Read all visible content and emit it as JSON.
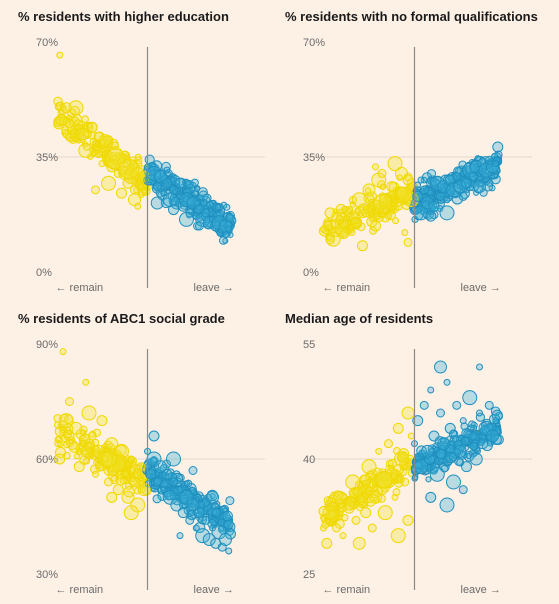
{
  "colors": {
    "background": "#fdf1e6",
    "remain": "#f2e22e",
    "remain_stroke": "#f0d800",
    "leave": "#3ab0d8",
    "leave_stroke": "#1f8fbf",
    "divider": "#8a8a8a",
    "gridline": "#e4d8cc"
  },
  "x_axis": {
    "remain_label": "← remain",
    "leave_label": "leave →"
  },
  "chart_data": [
    {
      "type": "scatter",
      "title": "% residents with higher education",
      "x_labels": [
        "← remain",
        "leave →"
      ],
      "ylim": [
        0,
        70
      ],
      "y_ticks": [
        "70%",
        "35%",
        "0%"
      ],
      "x_range_leave_share": [
        20,
        80
      ],
      "remain_trend": {
        "x": [
          22,
          50
        ],
        "y": [
          48,
          27
        ]
      },
      "leave_trend": {
        "x": [
          50,
          76
        ],
        "y": [
          31,
          13
        ]
      },
      "series": [
        {
          "group": "remain",
          "points": [
            [
              23,
              66
            ],
            [
              25,
              50
            ],
            [
              28,
              50
            ],
            [
              24,
              46
            ],
            [
              30,
              42
            ],
            [
              27,
              40
            ],
            [
              33,
              44
            ],
            [
              31,
              37
            ],
            [
              35,
              36
            ],
            [
              37,
              40
            ],
            [
              36,
              33
            ],
            [
              39,
              32
            ],
            [
              40,
              36
            ],
            [
              41,
              30
            ],
            [
              43,
              30
            ],
            [
              42,
              34
            ],
            [
              44,
              27
            ],
            [
              45,
              29
            ],
            [
              46,
              25
            ],
            [
              47,
              30
            ],
            [
              48,
              26
            ],
            [
              49,
              29
            ],
            [
              38,
              27
            ],
            [
              34,
              25
            ],
            [
              46,
              22
            ],
            [
              47,
              20
            ],
            [
              42,
              24
            ]
          ]
        },
        {
          "group": "leave",
          "points": [
            [
              50,
              32
            ],
            [
              51,
              28
            ],
            [
              52,
              30
            ],
            [
              53,
              26
            ],
            [
              54,
              29
            ],
            [
              55,
              24
            ],
            [
              56,
              27
            ],
            [
              57,
              22
            ],
            [
              58,
              25
            ],
            [
              59,
              21
            ],
            [
              60,
              23
            ],
            [
              61,
              20
            ],
            [
              62,
              22
            ],
            [
              63,
              18
            ],
            [
              64,
              21
            ],
            [
              65,
              17
            ],
            [
              66,
              19
            ],
            [
              67,
              16
            ],
            [
              68,
              18
            ],
            [
              69,
              15
            ],
            [
              70,
              16
            ],
            [
              71,
              14
            ],
            [
              72,
              15
            ],
            [
              73,
              13
            ],
            [
              74,
              14
            ],
            [
              75,
              13
            ],
            [
              58,
              19
            ],
            [
              62,
              16
            ],
            [
              66,
              14
            ],
            [
              53,
              21
            ],
            [
              56,
              31
            ],
            [
              60,
              27
            ]
          ]
        }
      ]
    },
    {
      "type": "scatter",
      "title": "% residents with no formal qualifications",
      "x_labels": [
        "← remain",
        "leave →"
      ],
      "ylim": [
        0,
        70
      ],
      "y_ticks": [
        "70%",
        "35%",
        "0%"
      ],
      "x_range_leave_share": [
        20,
        80
      ],
      "remain_trend": {
        "x": [
          22,
          50
        ],
        "y": [
          13,
          25
        ]
      },
      "leave_trend": {
        "x": [
          50,
          76
        ],
        "y": [
          21,
          32
        ]
      },
      "series": [
        {
          "group": "remain",
          "points": [
            [
              22,
              13
            ],
            [
              24,
              18
            ],
            [
              25,
              10
            ],
            [
              27,
              16
            ],
            [
              28,
              12
            ],
            [
              30,
              19
            ],
            [
              32,
              15
            ],
            [
              33,
              22
            ],
            [
              35,
              18
            ],
            [
              36,
              25
            ],
            [
              37,
              20
            ],
            [
              38,
              14
            ],
            [
              39,
              28
            ],
            [
              40,
              30
            ],
            [
              41,
              22
            ],
            [
              42,
              17
            ],
            [
              43,
              26
            ],
            [
              44,
              33
            ],
            [
              45,
              20
            ],
            [
              46,
              24
            ],
            [
              47,
              12
            ],
            [
              48,
              28
            ],
            [
              49,
              22
            ],
            [
              48,
              9
            ],
            [
              46,
              30
            ],
            [
              38,
              32
            ],
            [
              34,
              8
            ]
          ]
        },
        {
          "group": "leave",
          "points": [
            [
              50,
              19
            ],
            [
              51,
              23
            ],
            [
              52,
              18
            ],
            [
              53,
              25
            ],
            [
              54,
              21
            ],
            [
              55,
              24
            ],
            [
              56,
              20
            ],
            [
              57,
              27
            ],
            [
              58,
              23
            ],
            [
              59,
              26
            ],
            [
              60,
              22
            ],
            [
              61,
              28
            ],
            [
              62,
              25
            ],
            [
              63,
              29
            ],
            [
              64,
              26
            ],
            [
              65,
              30
            ],
            [
              66,
              27
            ],
            [
              67,
              31
            ],
            [
              68,
              29
            ],
            [
              69,
              32
            ],
            [
              70,
              30
            ],
            [
              71,
              33
            ],
            [
              72,
              31
            ],
            [
              73,
              34
            ],
            [
              74,
              32
            ],
            [
              75,
              33
            ],
            [
              55,
              17
            ],
            [
              60,
              18
            ],
            [
              65,
              23
            ],
            [
              70,
              26
            ],
            [
              52,
              28
            ]
          ]
        }
      ]
    },
    {
      "type": "scatter",
      "title": "% residents of ABC1 social grade",
      "x_labels": [
        "← remain",
        "leave →"
      ],
      "ylim": [
        30,
        90
      ],
      "y_ticks": [
        "90%",
        "60%",
        "30%"
      ],
      "x_range_leave_share": [
        20,
        80
      ],
      "remain_trend": {
        "x": [
          22,
          50
        ],
        "y": [
          68,
          54
        ]
      },
      "leave_trend": {
        "x": [
          50,
          76
        ],
        "y": [
          57,
          43
        ]
      },
      "series": [
        {
          "group": "remain",
          "points": [
            [
              24,
              88
            ],
            [
              23,
              60
            ],
            [
              25,
              70
            ],
            [
              26,
              75
            ],
            [
              28,
              68
            ],
            [
              30,
              64
            ],
            [
              29,
              58
            ],
            [
              32,
              72
            ],
            [
              33,
              66
            ],
            [
              35,
              62
            ],
            [
              34,
              56
            ],
            [
              36,
              70
            ],
            [
              37,
              60
            ],
            [
              38,
              54
            ],
            [
              39,
              64
            ],
            [
              40,
              58
            ],
            [
              41,
              52
            ],
            [
              42,
              62
            ],
            [
              43,
              56
            ],
            [
              44,
              50
            ],
            [
              45,
              60
            ],
            [
              46,
              54
            ],
            [
              47,
              48
            ],
            [
              48,
              58
            ],
            [
              49,
              52
            ],
            [
              31,
              80
            ],
            [
              39,
              50
            ],
            [
              45,
              46
            ]
          ]
        },
        {
          "group": "leave",
          "points": [
            [
              50,
              62
            ],
            [
              51,
              56
            ],
            [
              52,
              60
            ],
            [
              53,
              54
            ],
            [
              54,
              58
            ],
            [
              55,
              52
            ],
            [
              56,
              56
            ],
            [
              57,
              50
            ],
            [
              58,
              54
            ],
            [
              59,
              48
            ],
            [
              60,
              52
            ],
            [
              61,
              46
            ],
            [
              62,
              50
            ],
            [
              63,
              44
            ],
            [
              64,
              48
            ],
            [
              65,
              42
            ],
            [
              66,
              46
            ],
            [
              67,
              40
            ],
            [
              68,
              44
            ],
            [
              69,
              39
            ],
            [
              70,
              42
            ],
            [
              71,
              38
            ],
            [
              72,
              41
            ],
            [
              73,
              37
            ],
            [
              74,
              39
            ],
            [
              75,
              36
            ],
            [
              52,
              66
            ],
            [
              58,
              60
            ],
            [
              64,
              57
            ],
            [
              70,
              50
            ],
            [
              60,
              40
            ]
          ]
        }
      ]
    },
    {
      "type": "scatter",
      "title": "Median age of residents",
      "x_labels": [
        "← remain",
        "leave →"
      ],
      "ylim": [
        25,
        55
      ],
      "y_ticks": [
        "55",
        "40",
        "25"
      ],
      "x_range_leave_share": [
        20,
        80
      ],
      "remain_trend": {
        "x": [
          22,
          50
        ],
        "y": [
          32,
          40
        ]
      },
      "leave_trend": {
        "x": [
          50,
          76
        ],
        "y": [
          39,
          44
        ]
      },
      "series": [
        {
          "group": "remain",
          "points": [
            [
              22,
              31
            ],
            [
              23,
              29
            ],
            [
              24,
              33
            ],
            [
              26,
              31
            ],
            [
              27,
              35
            ],
            [
              28,
              30
            ],
            [
              30,
              34
            ],
            [
              31,
              37
            ],
            [
              32,
              32
            ],
            [
              33,
              29
            ],
            [
              34,
              36
            ],
            [
              35,
              33
            ],
            [
              36,
              39
            ],
            [
              37,
              31
            ],
            [
              38,
              35
            ],
            [
              39,
              41
            ],
            [
              40,
              36
            ],
            [
              41,
              33
            ],
            [
              42,
              42
            ],
            [
              43,
              38
            ],
            [
              44,
              35
            ],
            [
              45,
              44
            ],
            [
              46,
              40
            ],
            [
              47,
              37
            ],
            [
              48,
              46
            ],
            [
              49,
              43
            ],
            [
              48,
              32
            ],
            [
              45,
              30
            ]
          ]
        },
        {
          "group": "leave",
          "points": [
            [
              50,
              42
            ],
            [
              51,
              45
            ],
            [
              52,
              39
            ],
            [
              53,
              47
            ],
            [
              54,
              41
            ],
            [
              55,
              49
            ],
            [
              56,
              43
            ],
            [
              57,
              38
            ],
            [
              58,
              46
            ],
            [
              59,
              42
            ],
            [
              60,
              50
            ],
            [
              61,
              44
            ],
            [
              62,
              37
            ],
            [
              63,
              47
            ],
            [
              64,
              41
            ],
            [
              65,
              45
            ],
            [
              66,
              39
            ],
            [
              67,
              48
            ],
            [
              68,
              43
            ],
            [
              69,
              40
            ],
            [
              70,
              46
            ],
            [
              71,
              42
            ],
            [
              72,
              44
            ],
            [
              73,
              47
            ],
            [
              74,
              43
            ],
            [
              75,
              45
            ],
            [
              55,
              35
            ],
            [
              60,
              34
            ],
            [
              65,
              36
            ],
            [
              58,
              52
            ],
            [
              70,
              52
            ]
          ]
        }
      ]
    }
  ]
}
